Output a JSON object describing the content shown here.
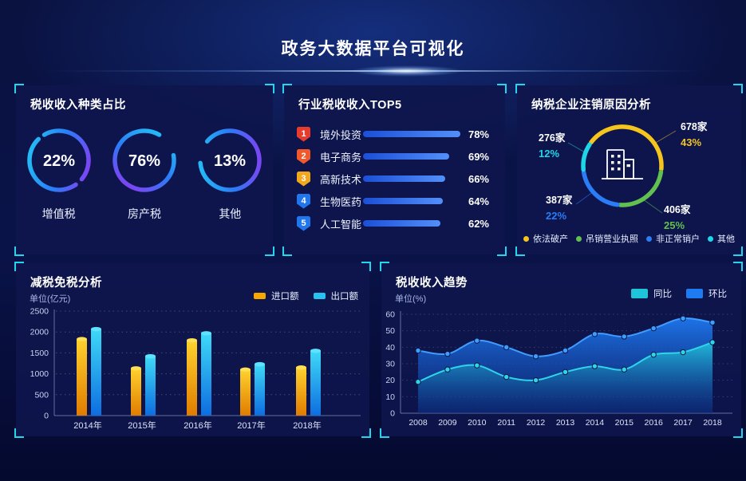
{
  "header": {
    "title": "政务大数据平台可视化"
  },
  "theme": {
    "accent_corner": "#23d6ef",
    "background": "#0a1244",
    "panel_background": "#0e154c",
    "ring_gradient": [
      "#9b30f2",
      "#2a7cf7",
      "#22d0f5"
    ]
  },
  "panels": {
    "tax_type": {
      "title": "税收收入种类占比",
      "donuts": [
        {
          "percent": 22,
          "percent_label": "22%",
          "label": "增值税"
        },
        {
          "percent": 76,
          "percent_label": "76%",
          "label": "房产税"
        },
        {
          "percent": 13,
          "percent_label": "13%",
          "label": "其他"
        }
      ]
    },
    "industry_top5": {
      "title": "行业税收收入TOP5",
      "items": [
        {
          "rank": "1",
          "label": "境外投资",
          "percent": 78,
          "percent_label": "78%",
          "badge_color": "#e63c2e"
        },
        {
          "rank": "2",
          "label": "电子商务",
          "percent": 69,
          "percent_label": "69%",
          "badge_color": "#f1582b"
        },
        {
          "rank": "3",
          "label": "高新技术",
          "percent": 66,
          "percent_label": "66%",
          "badge_color": "#f2a71c"
        },
        {
          "rank": "4",
          "label": "生物医药",
          "percent": 64,
          "percent_label": "64%",
          "badge_color": "#2176ee"
        },
        {
          "rank": "5",
          "label": "人工智能",
          "percent": 62,
          "percent_label": "62%",
          "badge_color": "#2176ee"
        }
      ]
    },
    "cancel_reason": {
      "title": "纳税企业注销原因分析",
      "slices": [
        {
          "label": "依法破产",
          "count": "678家",
          "percent": 43,
          "percent_label": "43%",
          "color": "#f5c51e"
        },
        {
          "label": "吊销营业执照",
          "count": "406家",
          "percent": 25,
          "percent_label": "25%",
          "color": "#62c04e"
        },
        {
          "label": "非正常销户",
          "count": "387家",
          "percent": 22,
          "percent_label": "22%",
          "color": "#2b7cf7"
        },
        {
          "label": "其他",
          "count": "276家",
          "percent": 12,
          "percent_label": "12%",
          "color": "#1fd6e8"
        }
      ]
    }
  },
  "chart_data": [
    {
      "type": "bar",
      "title": "减税免税分析",
      "unit": "单位(亿元)",
      "categories": [
        "2014年",
        "2015年",
        "2016年",
        "2017年",
        "2018年"
      ],
      "series": [
        {
          "name": "进口额",
          "color": "#f5a800",
          "gradient": [
            "#ffd22e",
            "#e07c00"
          ],
          "cap": "#ffdf55",
          "values": [
            1830,
            1130,
            1800,
            1100,
            1150
          ]
        },
        {
          "name": "出口额",
          "color": "#29c2f0",
          "gradient": [
            "#3fd9f7",
            "#0e6de0"
          ],
          "cap": "#5fe2ff",
          "values": [
            2070,
            1420,
            1970,
            1230,
            1550
          ]
        }
      ],
      "ylim": [
        0,
        2500
      ],
      "yticks": [
        0,
        500,
        1000,
        1500,
        2000,
        2500
      ],
      "grid": "horizontal-dotted",
      "legend_position": "top-right"
    },
    {
      "type": "area",
      "title": "税收收入趋势",
      "unit": "单位(%)",
      "x": [
        "2008",
        "2009",
        "2010",
        "2011",
        "2012",
        "2013",
        "2014",
        "2015",
        "2016",
        "2017",
        "2018"
      ],
      "series": [
        {
          "name": "同比",
          "color": "#1fc4d8",
          "line": "#2ed5e9",
          "values": [
            19,
            26.5,
            29,
            22,
            20,
            25,
            28.5,
            26.5,
            35.5,
            37,
            43
          ]
        },
        {
          "name": "环比",
          "color": "#1e7bf2",
          "line": "#3f9dff",
          "values": [
            38,
            36,
            44,
            40,
            34.5,
            38,
            48,
            46.5,
            51.5,
            57.5,
            55
          ]
        }
      ],
      "ylim": [
        0,
        60
      ],
      "yticks": [
        0,
        10,
        20,
        30,
        40,
        50,
        60
      ],
      "grid": "both-dotted",
      "legend_position": "top-right"
    }
  ]
}
